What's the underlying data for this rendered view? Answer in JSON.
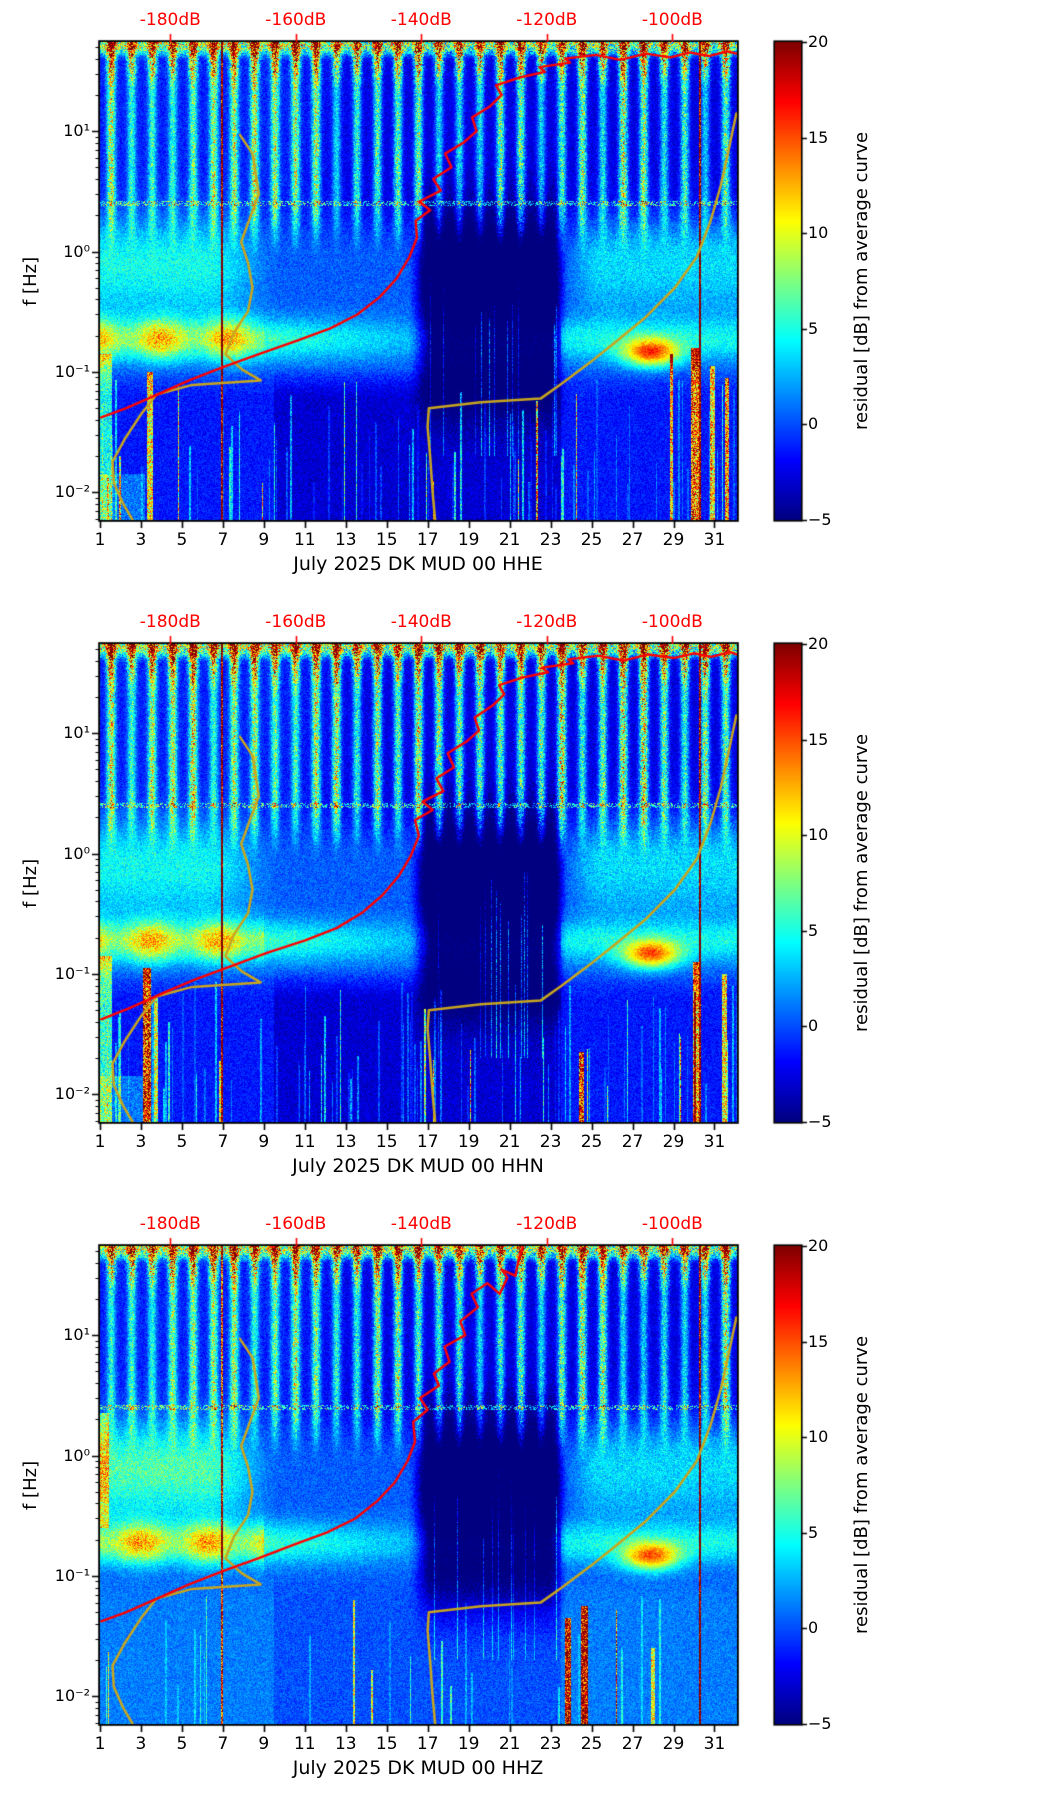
{
  "figure": {
    "ylabel": "f [Hz]",
    "colorbar_label": "residual [dB] from average curve",
    "top_axis_color": "#ff0000",
    "axis_color": "#000000",
    "x_ticks": [
      {
        "label": "1",
        "day": 1
      },
      {
        "label": "3",
        "day": 3
      },
      {
        "label": "5",
        "day": 5
      },
      {
        "label": "7",
        "day": 7
      },
      {
        "label": "9",
        "day": 9
      },
      {
        "label": "11",
        "day": 11
      },
      {
        "label": "13",
        "day": 13
      },
      {
        "label": "15",
        "day": 15
      },
      {
        "label": "17",
        "day": 17
      },
      {
        "label": "19",
        "day": 19
      },
      {
        "label": "21",
        "day": 21
      },
      {
        "label": "23",
        "day": 23
      },
      {
        "label": "25",
        "day": 25
      },
      {
        "label": "27",
        "day": 27
      },
      {
        "label": "29",
        "day": 29
      },
      {
        "label": "31",
        "day": 31
      }
    ],
    "y_ticks": [
      {
        "label": "10¹",
        "lf": 1
      },
      {
        "label": "10⁰",
        "lf": 0
      },
      {
        "label": "10⁻¹",
        "lf": -1
      },
      {
        "label": "10⁻²",
        "lf": -2
      }
    ],
    "top_ticks": [
      {
        "label": "-180dB",
        "db": -180
      },
      {
        "label": "-160dB",
        "db": -160
      },
      {
        "label": "-140dB",
        "db": -140
      },
      {
        "label": "-120dB",
        "db": -120
      },
      {
        "label": "-100dB",
        "db": -100
      }
    ],
    "colorbar_ticks": [
      {
        "label": "20",
        "v": 20
      },
      {
        "label": "15",
        "v": 15
      },
      {
        "label": "10",
        "v": 10
      },
      {
        "label": "5",
        "v": 5
      },
      {
        "label": "0",
        "v": 0
      },
      {
        "label": "−5",
        "v": -5
      }
    ]
  },
  "noise_models": {
    "color": "#c8a51e",
    "line_width": 2.5,
    "low_model_points_f_hz_db": [
      [
        0.0059,
        -186
      ],
      [
        0.008,
        -187.5
      ],
      [
        0.012,
        -189
      ],
      [
        0.018,
        -189.2
      ],
      [
        0.028,
        -187.2
      ],
      [
        0.045,
        -184.6
      ],
      [
        0.065,
        -182.2
      ],
      [
        0.078,
        -176.5
      ],
      [
        0.085,
        -165.6
      ],
      [
        0.105,
        -168.6
      ],
      [
        0.14,
        -171.2
      ],
      [
        0.21,
        -169.9
      ],
      [
        0.32,
        -167.6
      ],
      [
        0.5,
        -166.9
      ],
      [
        0.8,
        -167.6
      ],
      [
        1.2,
        -168.7
      ],
      [
        1.9,
        -167.3
      ],
      [
        3.0,
        -165.9
      ],
      [
        4.5,
        -166.4
      ],
      [
        6.5,
        -166.9
      ],
      [
        9.3,
        -168.9
      ]
    ],
    "high_model_points_f_hz_db": [
      [
        0.0059,
        -137.8
      ],
      [
        0.01,
        -138.2
      ],
      [
        0.02,
        -138.6
      ],
      [
        0.035,
        -139.0
      ],
      [
        0.05,
        -138.8
      ],
      [
        0.056,
        -130.5
      ],
      [
        0.06,
        -121.0
      ],
      [
        0.08,
        -117.6
      ],
      [
        0.12,
        -113.1
      ],
      [
        0.18,
        -108.9
      ],
      [
        0.28,
        -104.4
      ],
      [
        0.5,
        -99.6
      ],
      [
        0.9,
        -96.1
      ],
      [
        1.8,
        -93.9
      ],
      [
        3.5,
        -92.3
      ],
      [
        6.0,
        -91.3
      ],
      [
        10.0,
        -90.4
      ],
      [
        14.0,
        -89.8
      ]
    ]
  },
  "chart_data": [
    {
      "type": "heatmap",
      "title": "July 2025 DK MUD 00 HHE",
      "channel": "HHE",
      "network_station": "DK MUD 00",
      "month": "July 2025",
      "x_axis": {
        "unit": "day of July 2025",
        "range": [
          1,
          32.1
        ]
      },
      "y_axis": {
        "label": "f [Hz]",
        "scale": "log",
        "range_hz": [
          0.0059,
          55
        ]
      },
      "top_axis": {
        "unit": "dB",
        "range": [
          -191.2,
          -89.7
        ],
        "tick_values": [
          -180,
          -160,
          -140,
          -120,
          -100
        ]
      },
      "colorbar": {
        "label": "residual [dB] from average curve",
        "range": [
          -5,
          20
        ],
        "colormap": "jet"
      },
      "average_curve_color": "#ff0000",
      "average_curve_points_f_hz_db": [
        [
          0.042,
          -191
        ],
        [
          0.05,
          -187
        ],
        [
          0.065,
          -182
        ],
        [
          0.085,
          -177
        ],
        [
          0.11,
          -171.5
        ],
        [
          0.14,
          -166
        ],
        [
          0.18,
          -160
        ],
        [
          0.23,
          -154.5
        ],
        [
          0.3,
          -150.2
        ],
        [
          0.42,
          -146.6
        ],
        [
          0.6,
          -143.9
        ],
        [
          0.9,
          -141.9
        ],
        [
          1.3,
          -140.7
        ],
        [
          1.8,
          -140.9
        ],
        [
          2.2,
          -138.6
        ],
        [
          2.6,
          -140.3
        ],
        [
          3.2,
          -136.9
        ],
        [
          4.0,
          -138.1
        ],
        [
          5.0,
          -135.2
        ],
        [
          6.5,
          -136.2
        ],
        [
          8.0,
          -133.3
        ],
        [
          10,
          -131.2
        ],
        [
          13,
          -131.9
        ],
        [
          16,
          -129.1
        ],
        [
          20,
          -127.2
        ],
        [
          24,
          -128.1
        ],
        [
          28,
          -124.2
        ],
        [
          31,
          -120.3
        ],
        [
          34,
          -121.2
        ],
        [
          37,
          -116.3
        ],
        [
          40,
          -117.1
        ],
        [
          43,
          -112.2
        ],
        [
          39,
          -108.3
        ],
        [
          44,
          -104.2
        ],
        [
          41,
          -100.3
        ],
        [
          45,
          -97.1
        ],
        [
          42,
          -94.2
        ],
        [
          46,
          -91.3
        ],
        [
          44,
          -89.8
        ]
      ],
      "features": {
        "seed": 9011,
        "low_base": -1.8,
        "low_mid": 1.6,
        "left_blob": 4.5,
        "blob_amp": 13,
        "phase": 0.3,
        "bl_corner": true,
        "thin_streaks": 80,
        "mid_streaks": 12,
        "streaks": [
          {
            "day": 1.25,
            "w": 0.7,
            "lf": [
              -2.3,
              -0.85
            ],
            "amp": 6
          },
          {
            "day": 3.45,
            "w": 0.3,
            "lf": [
              -2.3,
              -1.0
            ],
            "amp": 12
          },
          {
            "day": 6.95,
            "w": 0.1,
            "lf": [
              -2.3,
              1.74
            ],
            "amp": 24
          },
          {
            "day": 28.9,
            "w": 0.18,
            "lf": [
              -2.3,
              -0.85
            ],
            "amp": 13
          },
          {
            "day": 30.05,
            "w": 0.35,
            "lf": [
              -2.3,
              -0.8
            ],
            "amp": 15
          },
          {
            "day": 30.3,
            "w": 0.1,
            "lf": [
              -2.3,
              1.74
            ],
            "amp": 24
          },
          {
            "day": 30.9,
            "w": 0.25,
            "lf": [
              -2.3,
              -0.95
            ],
            "amp": 12
          },
          {
            "day": 31.6,
            "w": 0.22,
            "lf": [
              -2.3,
              -1.05
            ],
            "amp": 14
          }
        ]
      }
    },
    {
      "type": "heatmap",
      "title": "July 2025 DK MUD 00 HHN",
      "channel": "HHN",
      "network_station": "DK MUD 00",
      "month": "July 2025",
      "x_axis": {
        "unit": "day of July 2025",
        "range": [
          1,
          32.1
        ]
      },
      "y_axis": {
        "label": "f [Hz]",
        "scale": "log",
        "range_hz": [
          0.0059,
          55
        ]
      },
      "top_axis": {
        "unit": "dB",
        "range": [
          -191.2,
          -89.7
        ],
        "tick_values": [
          -180,
          -160,
          -140,
          -120,
          -100
        ]
      },
      "colorbar": {
        "label": "residual [dB] from average curve",
        "range": [
          -5,
          20
        ],
        "colormap": "jet"
      },
      "average_curve_color": "#ff0000",
      "average_curve_points_f_hz_db": [
        [
          0.042,
          -191
        ],
        [
          0.052,
          -186.5
        ],
        [
          0.07,
          -181
        ],
        [
          0.09,
          -176
        ],
        [
          0.115,
          -170.5
        ],
        [
          0.15,
          -164.5
        ],
        [
          0.19,
          -158.5
        ],
        [
          0.24,
          -153.5
        ],
        [
          0.32,
          -149.5
        ],
        [
          0.45,
          -146.2
        ],
        [
          0.65,
          -143.6
        ],
        [
          0.95,
          -141.7
        ],
        [
          1.4,
          -140.4
        ],
        [
          1.9,
          -141.0
        ],
        [
          2.3,
          -138.2
        ],
        [
          2.7,
          -139.8
        ],
        [
          3.3,
          -136.5
        ],
        [
          4.2,
          -137.6
        ],
        [
          5.2,
          -134.8
        ],
        [
          6.8,
          -135.8
        ],
        [
          8.5,
          -132.8
        ],
        [
          10.5,
          -130.8
        ],
        [
          13.5,
          -131.5
        ],
        [
          17,
          -128.6
        ],
        [
          21,
          -126.8
        ],
        [
          25,
          -127.6
        ],
        [
          29,
          -123.8
        ],
        [
          32,
          -119.8
        ],
        [
          35,
          -120.8
        ],
        [
          38,
          -115.8
        ],
        [
          41,
          -116.6
        ],
        [
          44,
          -111.8
        ],
        [
          40,
          -107.8
        ],
        [
          45,
          -103.8
        ],
        [
          42,
          -99.8
        ],
        [
          46,
          -96.6
        ],
        [
          43,
          -93.8
        ],
        [
          47,
          -90.8
        ],
        [
          45,
          -89.8
        ]
      ],
      "features": {
        "seed": 9123,
        "low_base": -1.8,
        "low_mid": 1.6,
        "left_blob": 4.2,
        "blob_amp": 12,
        "phase": 1.2,
        "bl_corner": true,
        "thin_streaks": 85,
        "mid_streaks": 12,
        "streaks": [
          {
            "day": 1.25,
            "w": 0.7,
            "lf": [
              -2.3,
              -0.85
            ],
            "amp": 7
          },
          {
            "day": 3.3,
            "w": 0.42,
            "lf": [
              -2.3,
              -0.95
            ],
            "amp": 17
          },
          {
            "day": 3.75,
            "w": 0.2,
            "lf": [
              -2.3,
              -1.2
            ],
            "amp": 11
          },
          {
            "day": 6.95,
            "w": 0.1,
            "lf": [
              -2.3,
              1.74
            ],
            "amp": 24
          },
          {
            "day": 24.5,
            "w": 0.22,
            "lf": [
              -2.3,
              -1.65
            ],
            "amp": 17
          },
          {
            "day": 30.1,
            "w": 0.3,
            "lf": [
              -2.3,
              -0.9
            ],
            "amp": 14
          },
          {
            "day": 30.3,
            "w": 0.1,
            "lf": [
              -2.3,
              1.74
            ],
            "amp": 24
          },
          {
            "day": 31.5,
            "w": 0.22,
            "lf": [
              -2.3,
              -1.0
            ],
            "amp": 12
          }
        ]
      }
    },
    {
      "type": "heatmap",
      "title": "July 2025 DK MUD 00 HHZ",
      "channel": "HHZ",
      "network_station": "DK MUD 00",
      "month": "July 2025",
      "x_axis": {
        "unit": "day of July 2025",
        "range": [
          1,
          32.1
        ]
      },
      "y_axis": {
        "label": "f [Hz]",
        "scale": "log",
        "range_hz": [
          0.0059,
          55
        ]
      },
      "top_axis": {
        "unit": "dB",
        "range": [
          -191.2,
          -89.7
        ],
        "tick_values": [
          -180,
          -160,
          -140,
          -120,
          -100
        ]
      },
      "colorbar": {
        "label": "residual [dB] from average curve",
        "range": [
          -5,
          20
        ],
        "colormap": "jet"
      },
      "average_curve_color": "#ff0000",
      "average_curve_points_f_hz_db": [
        [
          0.042,
          -191
        ],
        [
          0.05,
          -187
        ],
        [
          0.065,
          -182
        ],
        [
          0.085,
          -177
        ],
        [
          0.11,
          -171.5
        ],
        [
          0.14,
          -166
        ],
        [
          0.18,
          -160.5
        ],
        [
          0.23,
          -155
        ],
        [
          0.3,
          -150.5
        ],
        [
          0.42,
          -147
        ],
        [
          0.6,
          -144.2
        ],
        [
          0.9,
          -142.2
        ],
        [
          1.3,
          -141
        ],
        [
          1.9,
          -141.3
        ],
        [
          2.4,
          -139
        ],
        [
          3.0,
          -140.2
        ],
        [
          3.8,
          -137.2
        ],
        [
          4.8,
          -138
        ],
        [
          6.0,
          -135.5
        ],
        [
          8.0,
          -136.3
        ],
        [
          10,
          -133
        ],
        [
          13,
          -133.8
        ],
        [
          17,
          -131
        ],
        [
          22,
          -132
        ],
        [
          27,
          -129.5
        ],
        [
          22,
          -127.5
        ],
        [
          30,
          -126.3
        ],
        [
          35,
          -127.2
        ],
        [
          31,
          -125
        ],
        [
          40,
          -124.6
        ],
        [
          48,
          -124.2
        ],
        [
          54,
          -123.8
        ]
      ],
      "features": {
        "seed": 9343,
        "low_base": 0.8,
        "low_mid": 1.1,
        "left_blob": 6.0,
        "blob_amp": 12,
        "phase": 2.2,
        "bl_corner": false,
        "thin_streaks": 25,
        "mid_streaks": 10,
        "streaks": [
          {
            "day": 1.2,
            "w": 0.5,
            "lf": [
              -0.6,
              0.35
            ],
            "amp": 6
          },
          {
            "day": 6.95,
            "w": 0.07,
            "lf": [
              -2.3,
              1.74
            ],
            "amp": 16
          },
          {
            "day": 23.85,
            "w": 0.28,
            "lf": [
              -2.3,
              -1.35
            ],
            "amp": 17
          },
          {
            "day": 24.65,
            "w": 0.33,
            "lf": [
              -2.3,
              -1.25
            ],
            "amp": 18
          },
          {
            "day": 28.0,
            "w": 0.18,
            "lf": [
              -2.3,
              -1.6
            ],
            "amp": 9
          },
          {
            "day": 30.3,
            "w": 0.1,
            "lf": [
              -2.3,
              1.74
            ],
            "amp": 24
          }
        ]
      }
    }
  ]
}
